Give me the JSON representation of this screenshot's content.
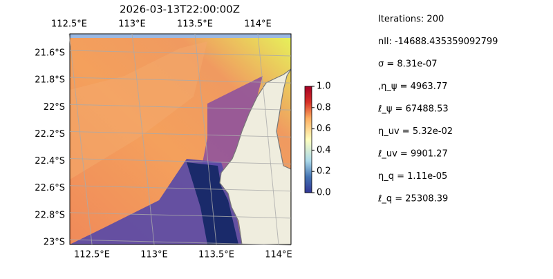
{
  "chart_data": {
    "type": "map",
    "title": "2026-03-13T22:00:00Z",
    "xticks": [
      {
        "value": 112.5,
        "label": "112.5°E"
      },
      {
        "value": 113,
        "label": "113°E"
      },
      {
        "value": 113.5,
        "label": "113.5°E"
      },
      {
        "value": 114,
        "label": "114°E"
      }
    ],
    "yticks": [
      {
        "value": -21.6,
        "label": "21.6°S"
      },
      {
        "value": -21.8,
        "label": "21.8°S"
      },
      {
        "value": -22,
        "label": "22°S"
      },
      {
        "value": -22.2,
        "label": "22.2°S"
      },
      {
        "value": -22.4,
        "label": "22.4°S"
      },
      {
        "value": -22.6,
        "label": "22.6°S"
      },
      {
        "value": -22.8,
        "label": "22.8°S"
      },
      {
        "value": -23,
        "label": "23°S"
      }
    ],
    "grid": true,
    "colorbar": {
      "lim": [
        0,
        1
      ],
      "ticks": [
        {
          "value": 0,
          "label": "0.0"
        },
        0.2,
        0.4,
        0.6,
        0.8,
        {
          "value": 1,
          "label": "1.0"
        }
      ]
    },
    "annotations": [
      "Iterations: 200",
      "nll: -14688.435359092799",
      "σ = 8.31e-07",
      ",η_ψ = 4963.77",
      "ℓ_ψ = 67488.53",
      "η_uv = 5.32e-02",
      "ℓ_uv = 9901.27",
      "η_q = 1.11e-05",
      "ℓ_q = 25308.39"
    ]
  }
}
